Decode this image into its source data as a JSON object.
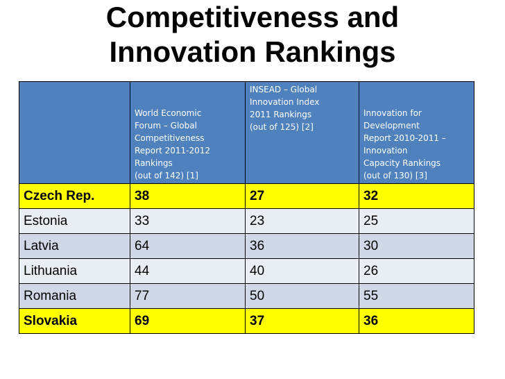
{
  "title": {
    "line1": "Competitiveness and",
    "line2": "Innovation Rankings"
  },
  "table": {
    "headers": [
      {
        "lines": []
      },
      {
        "lines": [
          "World Economic",
          "Forum – Global",
          "Competitiveness",
          "Report  2011-2012",
          "Rankings",
          "(out of 142) [1]"
        ]
      },
      {
        "lines": [
          "INSEAD – Global",
          "Innovation Index",
          "2011 Rankings",
          "(out of 125) [2]"
        ]
      },
      {
        "lines": [
          "Innovation for",
          "Development",
          "Report 2010-2011 –",
          "Innovation",
          "Capacity Rankings",
          "(out of 130) [3]"
        ]
      }
    ],
    "rows": [
      {
        "country": "Czech Rep.",
        "wef": "38",
        "insead": "27",
        "innovation": "32",
        "highlight": true
      },
      {
        "country": "Estonia",
        "wef": "33",
        "insead": "23",
        "innovation": "25",
        "highlight": false
      },
      {
        "country": "Latvia",
        "wef": "64",
        "insead": "36",
        "innovation": "30",
        "highlight": false
      },
      {
        "country": "Lithuania",
        "wef": "44",
        "insead": "40",
        "innovation": "26",
        "highlight": false
      },
      {
        "country": "Romania",
        "wef": "77",
        "insead": "50",
        "innovation": "55",
        "highlight": false
      },
      {
        "country": "Slovakia",
        "wef": "69",
        "insead": "37",
        "innovation": "36",
        "highlight": true
      }
    ]
  },
  "colors": {
    "header_bg": "#4f81bd",
    "highlight_bg": "#ffff00",
    "band_light": "#e9edf4",
    "band_dark": "#d0d8e8"
  }
}
